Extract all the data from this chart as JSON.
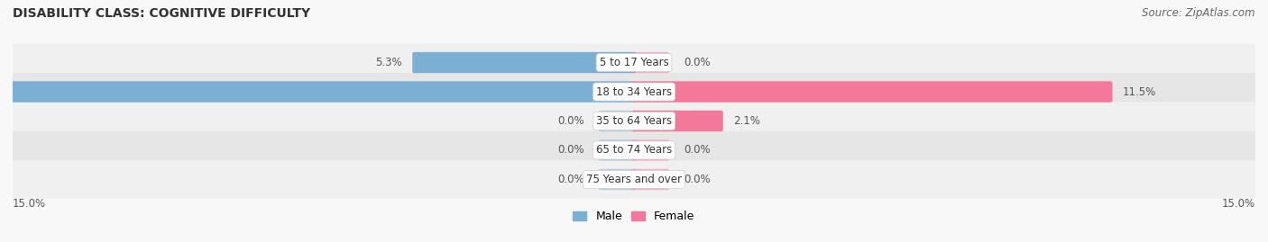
{
  "title": "DISABILITY CLASS: COGNITIVE DIFFICULTY",
  "source": "Source: ZipAtlas.com",
  "categories": [
    "5 to 17 Years",
    "18 to 34 Years",
    "35 to 64 Years",
    "65 to 74 Years",
    "75 Years and over"
  ],
  "male_values": [
    5.3,
    15.0,
    0.0,
    0.0,
    0.0
  ],
  "female_values": [
    0.0,
    11.5,
    2.1,
    0.0,
    0.0
  ],
  "max_val": 15.0,
  "male_color": "#7bafd4",
  "female_color": "#f4789a",
  "male_label": "Male",
  "female_label": "Female",
  "title_fontsize": 10,
  "source_fontsize": 8.5,
  "label_fontsize": 8.5,
  "title_color": "#333333",
  "source_color": "#666666",
  "value_color": "#555555",
  "row_colors": [
    "#f0f0f0",
    "#e6e6e6"
  ],
  "bg_color": "#f8f8f8"
}
